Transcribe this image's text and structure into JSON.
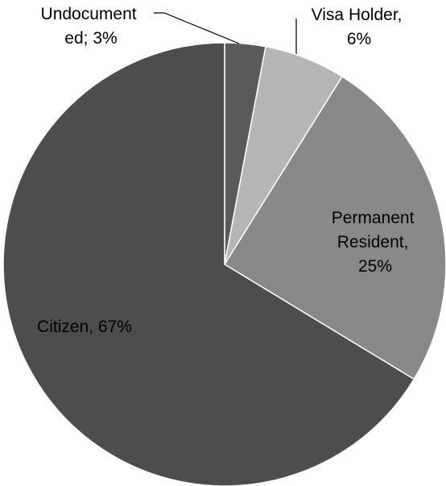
{
  "chart_data": {
    "type": "pie",
    "title": "",
    "start_angle_deg": 0,
    "direction": "clockwise",
    "slice_border_color": "#ffffff",
    "slices": [
      {
        "name": "Undocumented",
        "value": 3,
        "color": "#5a5a5a",
        "label_lines": [
          "Undocument",
          "ed; 3%"
        ]
      },
      {
        "name": "Visa Holder",
        "value": 6,
        "color": "#b5b5b5",
        "label_lines": [
          "Visa Holder,",
          "6%"
        ]
      },
      {
        "name": "Permanent Resident",
        "value": 25,
        "color": "#898989",
        "label_lines": [
          "Permanent",
          "Resident,",
          "25%"
        ]
      },
      {
        "name": "Citizen",
        "value": 67,
        "color": "#4d4d4d",
        "label_lines": [
          "Citizen, 67%"
        ]
      }
    ]
  }
}
